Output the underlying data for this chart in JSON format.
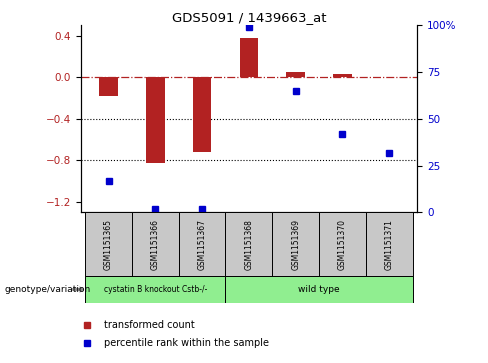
{
  "title": "GDS5091 / 1439663_at",
  "samples": [
    "GSM1151365",
    "GSM1151366",
    "GSM1151367",
    "GSM1151368",
    "GSM1151369",
    "GSM1151370",
    "GSM1151371"
  ],
  "transformed_count": [
    -0.18,
    -0.82,
    -0.72,
    0.38,
    0.05,
    0.03,
    0.0
  ],
  "percentile_rank": [
    17,
    2,
    2,
    99,
    65,
    42,
    32
  ],
  "group1_label": "cystatin B knockout Cstb-/-",
  "group1_indices": [
    0,
    1,
    2
  ],
  "group2_label": "wild type",
  "group2_indices": [
    3,
    4,
    5,
    6
  ],
  "group_color": "#90EE90",
  "ylim_left": [
    -1.3,
    0.5
  ],
  "ylim_right": [
    0,
    100
  ],
  "yticks_left": [
    -1.2,
    -0.8,
    -0.4,
    0.0,
    0.4
  ],
  "yticks_right": [
    0,
    25,
    50,
    75,
    100
  ],
  "bar_color": "#B22222",
  "dot_color": "#0000CC",
  "dotted_lines": [
    -0.4,
    -0.8
  ],
  "legend_item1": "transformed count",
  "legend_item2": "percentile rank within the sample",
  "genotype_label": "genotype/variation",
  "sample_box_color": "#C8C8C8",
  "bar_width": 0.4
}
